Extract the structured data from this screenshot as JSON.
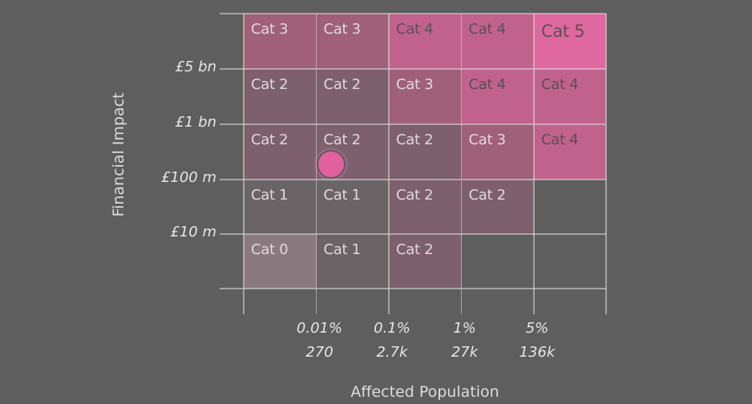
{
  "chart_data": {
    "type": "heatmap",
    "title": "",
    "xlabel": "Affected Population",
    "ylabel": "Financial Impact",
    "x_tick_labels": [
      {
        "pct": "0.01%",
        "count": "270"
      },
      {
        "pct": "0.1%",
        "count": "2.7k"
      },
      {
        "pct": "1%",
        "count": "27k"
      },
      {
        "pct": "5%",
        "count": "136k"
      }
    ],
    "y_tick_labels": [
      "£5 bn",
      "£1 bn",
      "£100 m",
      "£10 m"
    ],
    "grid": [
      [
        "Cat 3",
        "Cat 3",
        "Cat 4",
        "Cat 4",
        "Cat 5"
      ],
      [
        "Cat 2",
        "Cat 2",
        "Cat 3",
        "Cat 4",
        "Cat 4"
      ],
      [
        "Cat 2",
        "Cat 2",
        "Cat 2",
        "Cat 3",
        "Cat 4"
      ],
      [
        "Cat 1",
        "Cat 1",
        "Cat 2",
        "Cat 2",
        null
      ],
      [
        "Cat 0",
        "Cat 1",
        "Cat 2",
        null,
        null
      ]
    ],
    "category_colors": {
      "Cat 0": "#8a7a7f",
      "Cat 1": "#6b6467",
      "Cat 2": "#7d5f6d",
      "Cat 3": "#a06079",
      "Cat 4": "#c0628c",
      "Cat 5": "#e068a0"
    },
    "marker": {
      "row": 2,
      "col": 1,
      "x_frac": 0.2,
      "y_frac": 0.72,
      "color": "#e060a0"
    },
    "legend": "none"
  }
}
